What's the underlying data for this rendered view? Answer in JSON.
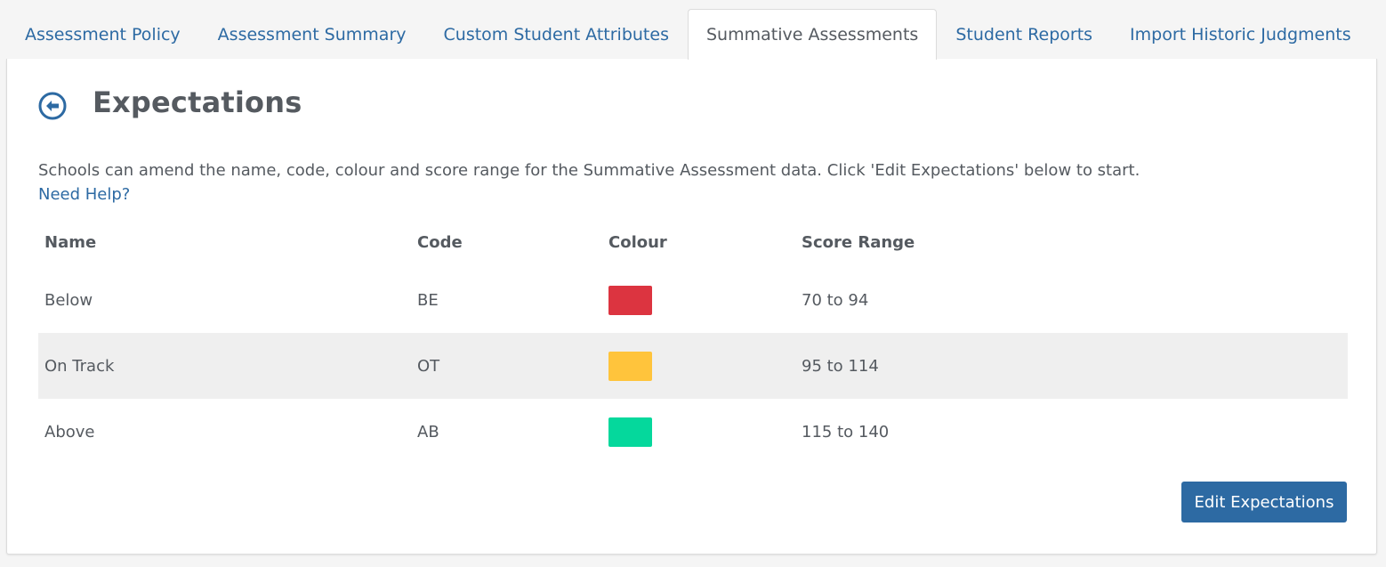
{
  "tabs": [
    {
      "label": "Assessment Policy",
      "active": false
    },
    {
      "label": "Assessment Summary",
      "active": false
    },
    {
      "label": "Custom Student Attributes",
      "active": false
    },
    {
      "label": "Summative Assessments",
      "active": true
    },
    {
      "label": "Student Reports",
      "active": false
    },
    {
      "label": "Import Historic Judgments",
      "active": false
    }
  ],
  "page": {
    "title": "Expectations",
    "back_icon": "arrow-left-circle-icon",
    "intro": "Schools can amend the name, code, colour and score range for the Summative Assessment data. Click 'Edit Expectations' below to start.",
    "help_link": "Need Help?"
  },
  "table": {
    "headers": {
      "name": "Name",
      "code": "Code",
      "colour": "Colour",
      "range": "Score Range"
    },
    "rows": [
      {
        "name": "Below",
        "code": "BE",
        "colour": "#dc3440",
        "range": "70 to 94"
      },
      {
        "name": "On Track",
        "code": "OT",
        "colour": "#ffc43c",
        "range": "95 to 114"
      },
      {
        "name": "Above",
        "code": "AB",
        "colour": "#05d89c",
        "range": "115 to 140"
      }
    ]
  },
  "actions": {
    "edit_label": "Edit Expectations"
  },
  "colors": {
    "accent": "#2d6aa3",
    "text": "#555a60",
    "stripe": "#efefef"
  }
}
